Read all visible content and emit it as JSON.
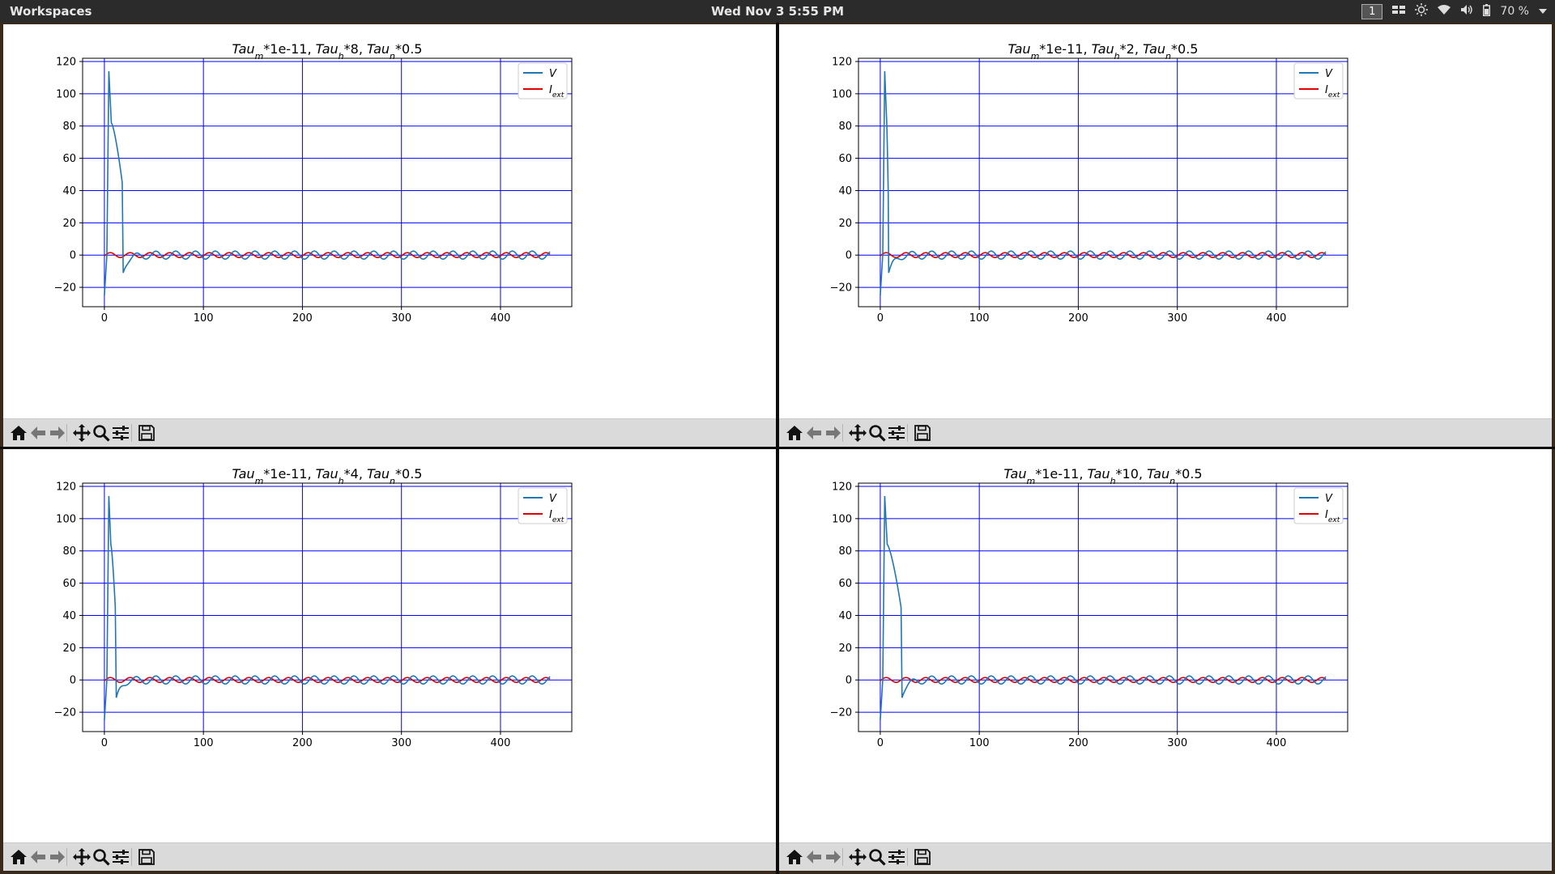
{
  "topbar": {
    "workspaces_label": "Workspaces",
    "clock": "Wed Nov 3   5:55 PM",
    "workspace_number": "1",
    "battery": "70 %"
  },
  "toolbar": {
    "icons": [
      "home-icon",
      "back-arrow-icon",
      "forward-arrow-icon",
      "pan-icon",
      "zoom-icon",
      "configure-subplots-icon",
      "save-icon"
    ]
  },
  "colors": {
    "v_line": "#1f77b4",
    "iext_line": "#e00000",
    "grid": "#0000ff",
    "toolbar_bg": "#dadada",
    "topbar_bg": "#2b2b2b"
  },
  "windows": [
    {
      "title_parts": {
        "a": "Tau",
        "a_sub": "m",
        "b": "*1e-11, Tau",
        "b_sub": "h",
        "c": "*8, Tau",
        "c_sub": "n",
        "d": "*0.5"
      },
      "chart_data": {
        "type": "line",
        "title": "Tau_m*1e-11, Tau_h*8, Tau_n*0.5",
        "xlim": [
          -22,
          472
        ],
        "ylim": [
          -32,
          122
        ],
        "xticks": [
          "0",
          "100",
          "200",
          "300",
          "400"
        ],
        "yticks": [
          "-20",
          "0",
          "20",
          "40",
          "60",
          "80",
          "100",
          "120"
        ],
        "xtick_values": [
          0,
          100,
          200,
          300,
          400
        ],
        "ytick_values": [
          -20,
          0,
          20,
          40,
          60,
          80,
          100,
          120
        ],
        "grid": true,
        "legend": {
          "position": "top-right",
          "entries": [
            {
              "label": "V"
            },
            {
              "label": "I",
              "label_sub": "ext"
            }
          ]
        },
        "series": [
          {
            "name": "V",
            "spike_start": 2.5,
            "spike_peak": 4.5,
            "peak": 114,
            "shoulder_x": 7,
            "shoulder_v": 82,
            "decay_end": 18,
            "decay_end_v": 45,
            "trough_x": 19,
            "trough_v": -11,
            "start_v": -25,
            "osc_period": 20,
            "osc_amp": 2.5,
            "end_x": 450
          },
          {
            "name": "I_ext",
            "amplitude": 1.5,
            "period": 20,
            "end_x": 450
          }
        ]
      }
    },
    {
      "title_parts": {
        "a": "Tau",
        "a_sub": "m",
        "b": "*1e-11, Tau",
        "b_sub": "h",
        "c": "*2, Tau",
        "c_sub": "n",
        "d": "*0.5"
      },
      "chart_data": {
        "type": "line",
        "title": "Tau_m*1e-11, Tau_h*2, Tau_n*0.5",
        "xlim": [
          -22,
          472
        ],
        "ylim": [
          -32,
          122
        ],
        "xticks": [
          "0",
          "100",
          "200",
          "300",
          "400"
        ],
        "yticks": [
          "-20",
          "0",
          "20",
          "40",
          "60",
          "80",
          "100",
          "120"
        ],
        "xtick_values": [
          0,
          100,
          200,
          300,
          400
        ],
        "ytick_values": [
          -20,
          0,
          20,
          40,
          60,
          80,
          100,
          120
        ],
        "grid": true,
        "legend": {
          "position": "top-right",
          "entries": [
            {
              "label": "V"
            },
            {
              "label": "I",
              "label_sub": "ext"
            }
          ]
        },
        "series": [
          {
            "name": "V",
            "spike_start": 2.5,
            "spike_peak": 4.5,
            "peak": 114,
            "shoulder_x": 6,
            "shoulder_v": 90,
            "decay_end": 8,
            "decay_end_v": 40,
            "trough_x": 8.5,
            "trough_v": -11,
            "start_v": -25,
            "osc_period": 20,
            "osc_amp": 2.5,
            "end_x": 450
          },
          {
            "name": "I_ext",
            "amplitude": 1.5,
            "period": 20,
            "end_x": 450
          }
        ]
      }
    },
    {
      "title_parts": {
        "a": "Tau",
        "a_sub": "m",
        "b": "*1e-11, Tau",
        "b_sub": "h",
        "c": "*4, Tau",
        "c_sub": "n",
        "d": "*0.5"
      },
      "chart_data": {
        "type": "line",
        "title": "Tau_m*1e-11, Tau_h*4, Tau_n*0.5",
        "xlim": [
          -22,
          472
        ],
        "ylim": [
          -32,
          122
        ],
        "xticks": [
          "0",
          "100",
          "200",
          "300",
          "400"
        ],
        "yticks": [
          "-20",
          "0",
          "20",
          "40",
          "60",
          "80",
          "100",
          "120"
        ],
        "xtick_values": [
          0,
          100,
          200,
          300,
          400
        ],
        "ytick_values": [
          -20,
          0,
          20,
          40,
          60,
          80,
          100,
          120
        ],
        "grid": true,
        "legend": {
          "position": "top-right",
          "entries": [
            {
              "label": "V"
            },
            {
              "label": "I",
              "label_sub": "ext"
            }
          ]
        },
        "series": [
          {
            "name": "V",
            "spike_start": 2.5,
            "spike_peak": 4.5,
            "peak": 114,
            "shoulder_x": 6.5,
            "shoulder_v": 84,
            "decay_end": 11,
            "decay_end_v": 45,
            "trough_x": 12,
            "trough_v": -11,
            "start_v": -25,
            "osc_period": 20,
            "osc_amp": 2.5,
            "end_x": 450
          },
          {
            "name": "I_ext",
            "amplitude": 1.5,
            "period": 20,
            "end_x": 450
          }
        ]
      }
    },
    {
      "title_parts": {
        "a": "Tau",
        "a_sub": "m",
        "b": "*1e-11, Tau",
        "b_sub": "h",
        "c": "*10, Tau",
        "c_sub": "n",
        "d": "*0.5"
      },
      "chart_data": {
        "type": "line",
        "title": "Tau_m*1e-11, Tau_h*10, Tau_n*0.5",
        "xlim": [
          -22,
          472
        ],
        "ylim": [
          -32,
          122
        ],
        "xticks": [
          "0",
          "100",
          "200",
          "300",
          "400"
        ],
        "yticks": [
          "-20",
          "0",
          "20",
          "40",
          "60",
          "80",
          "100",
          "120"
        ],
        "xtick_values": [
          0,
          100,
          200,
          300,
          400
        ],
        "ytick_values": [
          -20,
          0,
          20,
          40,
          60,
          80,
          100,
          120
        ],
        "grid": true,
        "legend": {
          "position": "top-right",
          "entries": [
            {
              "label": "V"
            },
            {
              "label": "I",
              "label_sub": "ext"
            }
          ]
        },
        "series": [
          {
            "name": "V",
            "spike_start": 2.5,
            "spike_peak": 4.5,
            "peak": 114,
            "shoulder_x": 7,
            "shoulder_v": 84,
            "decay_end": 21,
            "decay_end_v": 45,
            "trough_x": 22,
            "trough_v": -11,
            "start_v": -25,
            "osc_period": 20,
            "osc_amp": 2.5,
            "end_x": 450
          },
          {
            "name": "I_ext",
            "amplitude": 1.5,
            "period": 20,
            "end_x": 450
          }
        ]
      }
    }
  ]
}
